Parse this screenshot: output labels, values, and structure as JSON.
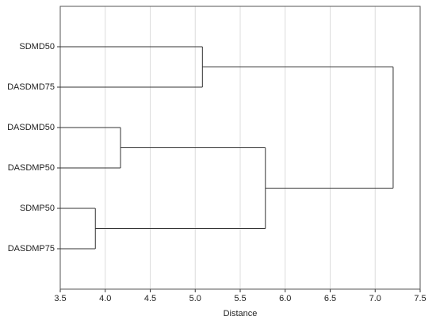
{
  "chart_data": {
    "type": "dendrogram",
    "xlabel": "Distance",
    "xlim": [
      3.5,
      7.5
    ],
    "xticks": [
      3.5,
      {
        "value": 4,
        "label": "4.0"
      },
      4.5,
      {
        "value": 5,
        "label": "5.0"
      },
      5.5,
      {
        "value": 6,
        "label": "6.0"
      },
      6.5,
      {
        "value": 7,
        "label": "7.0"
      },
      7.5
    ],
    "grid": true,
    "tree": {
      "height": 7.2,
      "children": [
        {
          "height": 5.08,
          "children": [
            "SDMD50",
            "DASDMD75"
          ]
        },
        {
          "height": 5.78,
          "children": [
            {
              "height": 4.17,
              "children": [
                "DASDMD50",
                "DASDMP50"
              ]
            },
            {
              "height": 3.89,
              "children": [
                "SDMP50",
                "DASDMP75"
              ]
            }
          ]
        }
      ]
    }
  }
}
